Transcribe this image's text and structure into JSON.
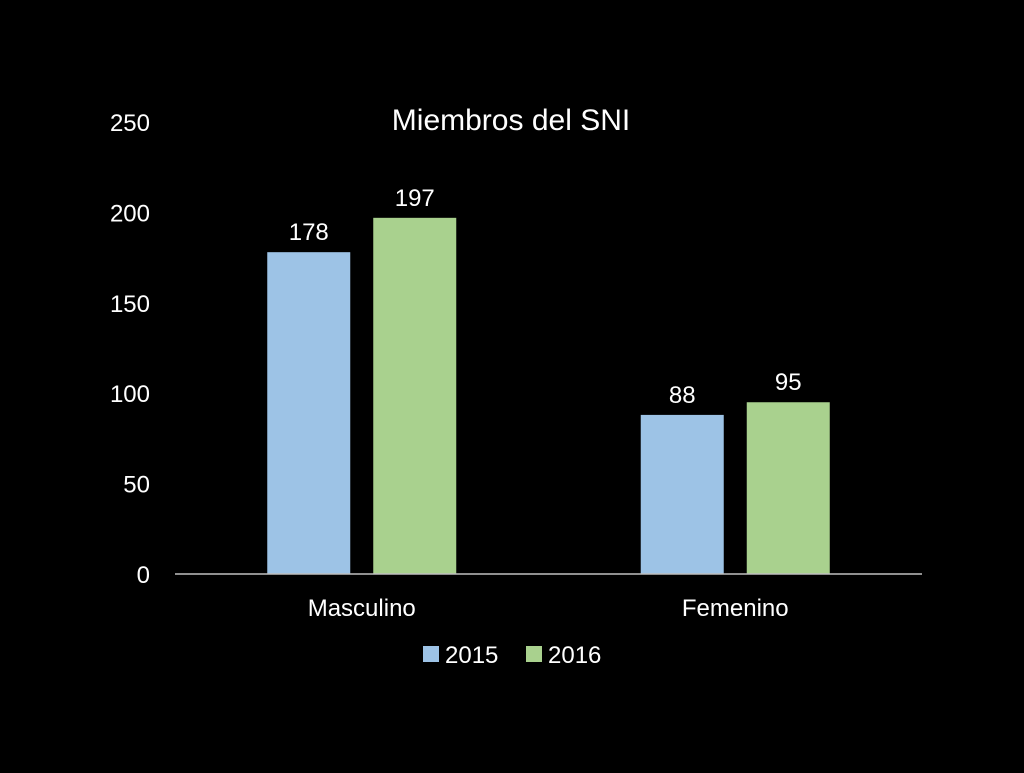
{
  "chart_data": {
    "type": "bar",
    "title": "Miembros del SNI",
    "xlabel": "",
    "ylabel": "",
    "categories": [
      "Masculino",
      "Femenino"
    ],
    "series": [
      {
        "name": "2015",
        "values": [
          178,
          88
        ],
        "color": "#9DC3E6"
      },
      {
        "name": "2016",
        "values": [
          197,
          95
        ],
        "color": "#A9D18E"
      }
    ],
    "ylim": [
      0,
      250
    ],
    "yticks": [
      0,
      50,
      100,
      150,
      200,
      250
    ],
    "grid": false,
    "legend_position": "bottom",
    "data_labels": true,
    "colors": {
      "background": "#000000",
      "text": "#FFFFFF",
      "axis": "#BFBFBF"
    }
  }
}
